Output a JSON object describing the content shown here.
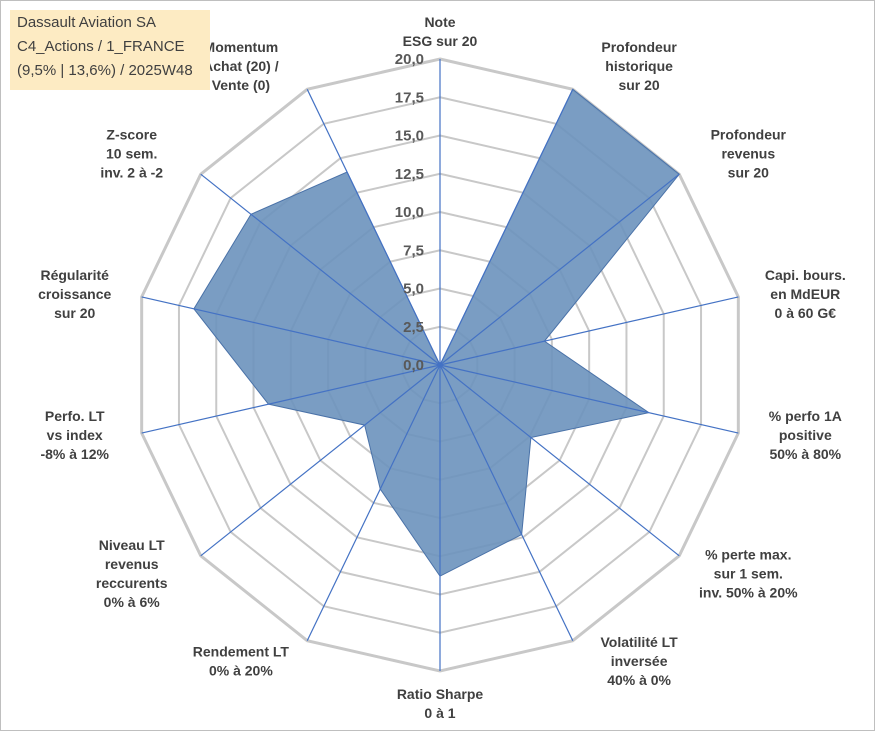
{
  "chart_data": {
    "type": "radar",
    "title_lines": [
      "Dassault Aviation SA",
      "C4_Actions / 1_FRANCE",
      "(9,5% | 13,6%) / 2025W48"
    ],
    "rmax": 20,
    "ticks": [
      "0,0",
      "2,5",
      "5,0",
      "7,5",
      "10,0",
      "12,5",
      "15,0",
      "17,5",
      "20,0"
    ],
    "axes": [
      {
        "label": [
          "Note",
          "ESG sur 20"
        ],
        "value": 0
      },
      {
        "label": [
          "Profondeur",
          "historique",
          "sur 20"
        ],
        "value": 20
      },
      {
        "label": [
          "Profondeur",
          "revenus",
          "sur 20"
        ],
        "value": 20
      },
      {
        "label": [
          "Capi. bours.",
          "en MdEUR",
          "0 à 60 G€"
        ],
        "value": 7
      },
      {
        "label": [
          "% perfo 1A",
          "positive",
          "50% à 80%"
        ],
        "value": 14
      },
      {
        "label": [
          "% perte max.",
          "sur 1 sem.",
          "inv. 50% à 20%"
        ],
        "value": 7.6
      },
      {
        "label": [
          "Volatilité LT",
          "inversée",
          "40% à 0%"
        ],
        "value": 12.3
      },
      {
        "label": [
          "Ratio Sharpe",
          "0 à 1"
        ],
        "value": 13.8
      },
      {
        "label": [
          "Rendement LT",
          "0% à 20%"
        ],
        "value": 9
      },
      {
        "label": [
          "Niveau LT",
          "revenus",
          "reccurents",
          "0% à 6%"
        ],
        "value": 6.3
      },
      {
        "label": [
          "Perfo. LT",
          "vs index",
          "-8% à 12%"
        ],
        "value": 11.5
      },
      {
        "label": [
          "Régularité",
          "croissance",
          "sur 20"
        ],
        "value": 16.5
      },
      {
        "label": [
          "Z-score",
          "10 sem.",
          "inv. 2 à -2"
        ],
        "value": 15.8
      },
      {
        "label": [
          "Momentum",
          "Achat (20) /",
          "Vente (0)"
        ],
        "value": 14
      }
    ],
    "colors": {
      "fill": "#6b92bd",
      "stroke": "#4a72a8",
      "grid": "#c8c8c8",
      "spoke": "#4472c4"
    }
  }
}
